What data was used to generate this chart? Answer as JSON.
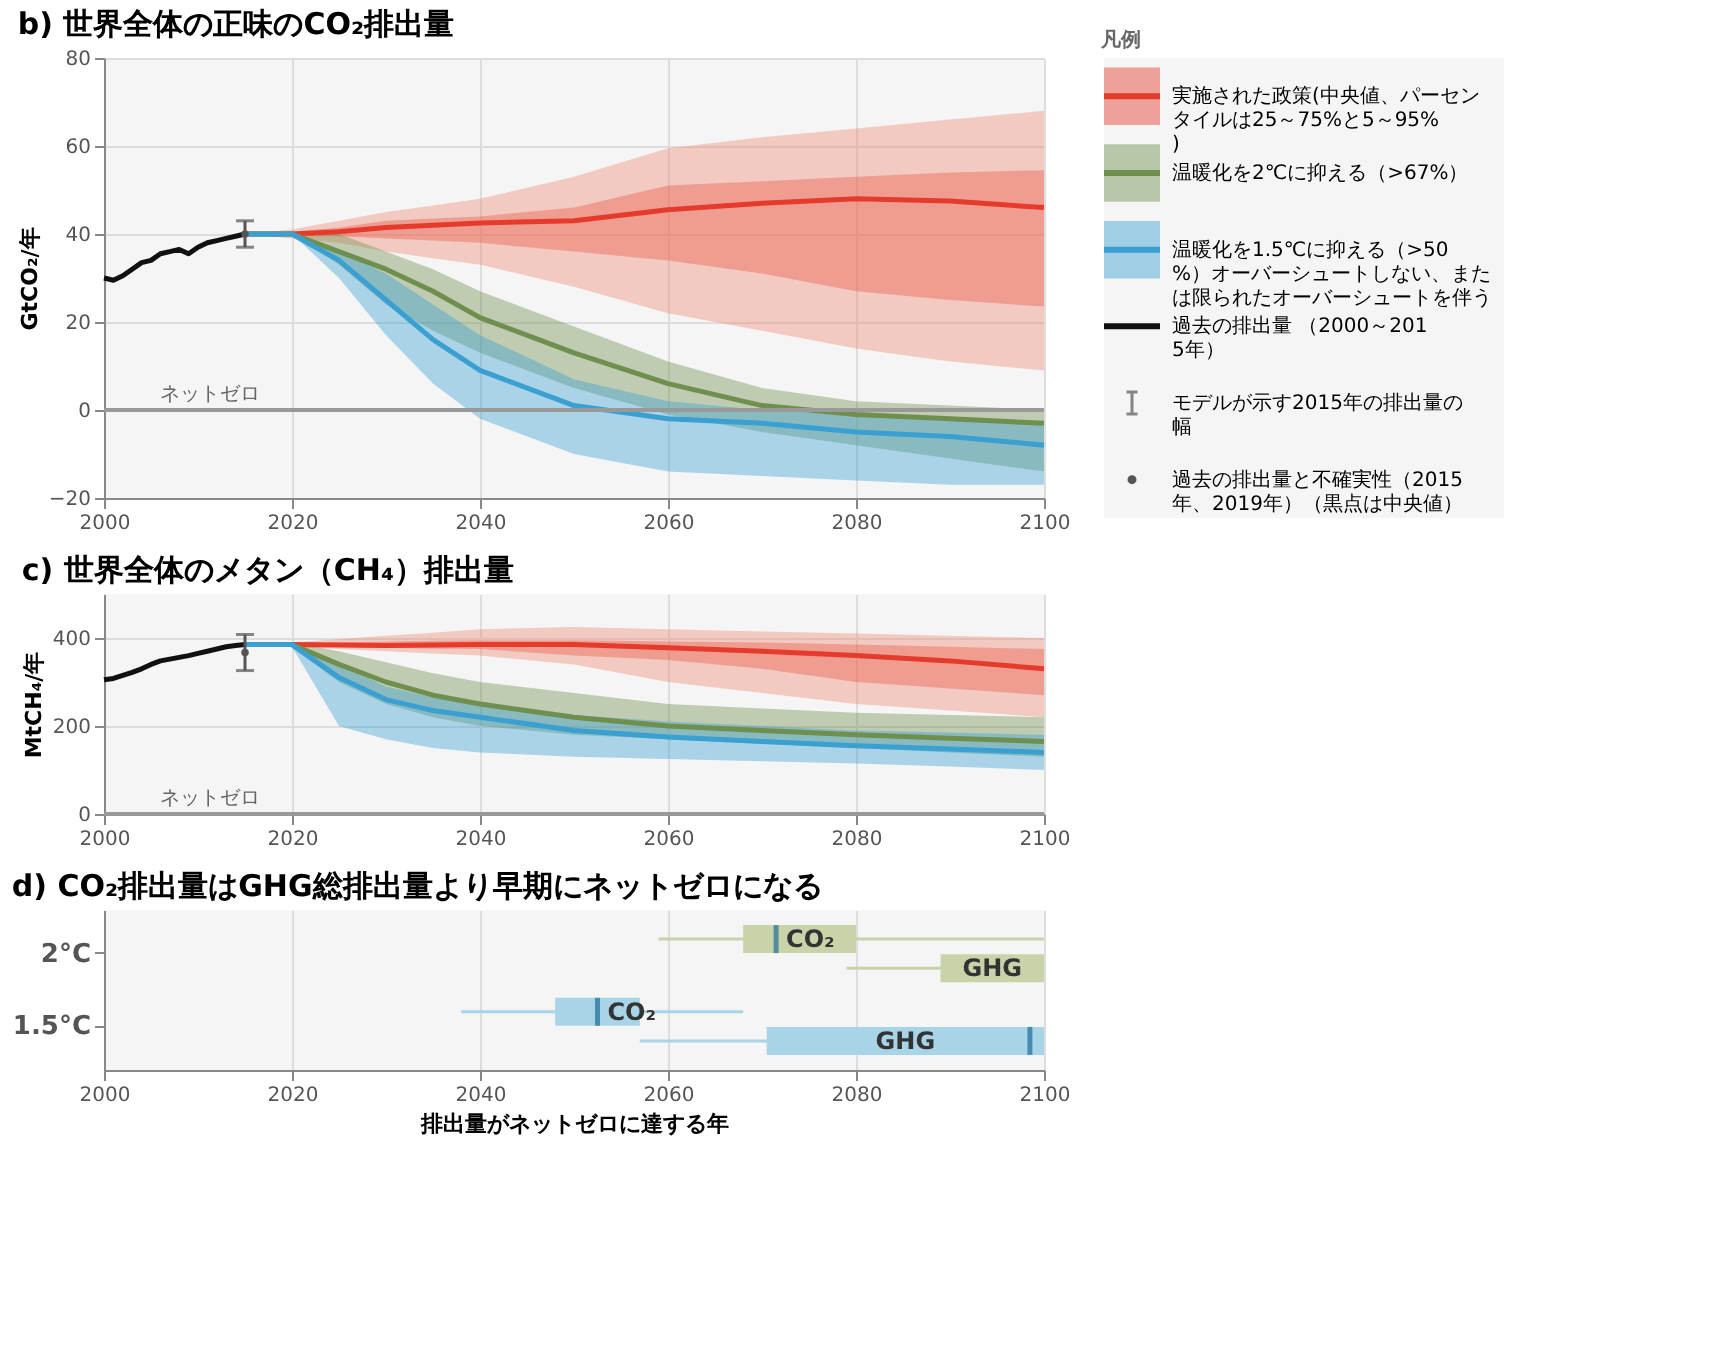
{
  "chart_data": [
    {
      "type": "line",
      "title": "b) 世界全体の正味のCO₂排出量",
      "ylabel": "GtCO₂/年",
      "legend_title": "凡例",
      "legend": "right",
      "grid": true,
      "x": [
        2015,
        2020,
        2025,
        2030,
        2035,
        2040,
        2050,
        2060,
        2070,
        2080,
        2090,
        2100
      ],
      "xlim": [
        2000,
        2100
      ],
      "xticks": [
        2000,
        2020,
        2040,
        2060,
        2080,
        2100
      ],
      "ylim": [
        -20,
        80
      ],
      "yticks": [
        -20,
        0,
        20,
        40,
        60,
        80
      ],
      "ref_lines": [
        {
          "axis": "y",
          "value": 0,
          "label": "ネットゼロ",
          "color": "#999999"
        }
      ],
      "annotations": [
        "過去の排出量と不確実性（2015年、2019年）（黒点は中央値）"
      ],
      "series": [
        {
          "name": "実施された政策(中央値、パーセンタイルは25～75%と5～95%)",
          "type": "line",
          "color": "#e53b2c",
          "values": [
            40,
            40,
            40.5,
            41.5,
            42,
            42.5,
            43,
            45.5,
            47,
            48,
            47.5,
            46
          ],
          "lower": [
            40,
            39.5,
            39.5,
            39,
            38.5,
            38,
            36,
            34,
            31,
            27,
            25,
            23.5
          ],
          "upper": [
            40,
            40.5,
            41.5,
            43,
            43.5,
            44,
            46,
            51,
            52,
            53,
            54,
            54.5
          ]
        },
        {
          "type": "line",
          "color": "#f08a73",
          "values": [
            null,
            null,
            null,
            null,
            null,
            null,
            null,
            null,
            null,
            null,
            null,
            null
          ],
          "lower": [
            40,
            39,
            38,
            36,
            34.5,
            33,
            28,
            22,
            18,
            14,
            11,
            9
          ],
          "upper": [
            40,
            41,
            43,
            45,
            46.5,
            48,
            53,
            59.5,
            62,
            64,
            66,
            68
          ]
        },
        {
          "name": "温暖化を2℃に抑える（>67%）",
          "type": "line",
          "color": "#6f8f4e",
          "values": [
            40,
            40,
            36,
            32,
            27,
            21,
            13,
            6,
            1,
            -1,
            -2,
            -3
          ],
          "lower": [
            40,
            40,
            33,
            24,
            18,
            13,
            5,
            -1,
            -5,
            -8,
            -11,
            -14
          ],
          "upper": [
            40,
            40,
            40,
            36,
            32,
            27,
            19,
            11,
            5,
            2,
            1,
            0
          ]
        },
        {
          "name": "温暖化を1.5℃に抑える（>50%）オーバーシュートしない、または限られたオーバーシュートを伴う",
          "type": "line",
          "color": "#3a9fd1",
          "values": [
            40,
            40,
            34,
            25,
            16,
            9,
            1,
            -2,
            -3,
            -5,
            -6,
            -8
          ],
          "lower": [
            40,
            40,
            30,
            17,
            6,
            -2,
            -10,
            -14,
            -15,
            -16,
            -17,
            -17
          ],
          "upper": [
            40,
            40,
            36,
            31,
            24,
            17,
            7,
            2,
            0,
            -1,
            -2,
            -3
          ]
        },
        {
          "name": "過去の排出量 （2000～2015年）",
          "type": "line",
          "color": "#111111",
          "x": [
            2000,
            2001,
            2002,
            2003,
            2004,
            2005,
            2006,
            2007,
            2008,
            2009,
            2010,
            2011,
            2012,
            2013,
            2014,
            2015
          ],
          "values": [
            30,
            29.5,
            30.5,
            32,
            33.5,
            34,
            35.5,
            36,
            36.5,
            35.5,
            37,
            38,
            38.5,
            39,
            39.5,
            40
          ]
        },
        {
          "name": "モデルが示す2015年の排出量の幅",
          "type": "scatter",
          "marker": "circle",
          "color": "#555555",
          "x": [
            2015
          ],
          "values": [
            40
          ],
          "errors": [
            3
          ]
        }
      ]
    },
    {
      "type": "line",
      "title": "c) 世界全体のメタン（CH₄）排出量",
      "ylabel": "MtCH₄/年",
      "grid": true,
      "legend": false,
      "x": [
        2015,
        2020,
        2025,
        2030,
        2035,
        2040,
        2050,
        2060,
        2070,
        2080,
        2090,
        2100
      ],
      "xlim": [
        2000,
        2100
      ],
      "xticks": [
        2000,
        2020,
        2040,
        2060,
        2080,
        2100
      ],
      "ylim": [
        0,
        500
      ],
      "yticks": [
        0,
        200,
        400
      ],
      "ref_lines": [
        {
          "axis": "y",
          "value": 0,
          "label": "ネットゼロ",
          "color": "#999999"
        }
      ],
      "series": [
        {
          "type": "line",
          "color": "#e53b2c",
          "values": [
            385,
            385,
            384,
            383,
            384,
            385,
            385,
            378,
            370,
            360,
            348,
            330
          ],
          "lower": [
            385,
            382,
            380,
            378,
            376,
            375,
            360,
            350,
            330,
            300,
            285,
            270
          ],
          "upper": [
            385,
            388,
            390,
            392,
            394,
            395,
            395,
            392,
            390,
            385,
            380,
            375
          ]
        },
        {
          "type": "line",
          "color": "#f08a73",
          "values": [
            null,
            null,
            null,
            null,
            null,
            null,
            null,
            null,
            null,
            null,
            null,
            null
          ],
          "lower": [
            385,
            380,
            375,
            370,
            365,
            360,
            340,
            300,
            275,
            250,
            235,
            220
          ],
          "upper": [
            385,
            390,
            398,
            405,
            412,
            420,
            425,
            420,
            415,
            410,
            405,
            400
          ]
        },
        {
          "type": "line",
          "color": "#6f8f4e",
          "values": [
            385,
            385,
            340,
            300,
            270,
            250,
            220,
            200,
            190,
            180,
            172,
            165
          ],
          "lower": [
            385,
            380,
            300,
            250,
            220,
            200,
            180,
            170,
            160,
            150,
            140,
            130
          ],
          "upper": [
            385,
            390,
            370,
            345,
            320,
            300,
            275,
            250,
            240,
            230,
            225,
            220
          ]
        },
        {
          "type": "line",
          "color": "#3a9fd1",
          "values": [
            385,
            385,
            310,
            260,
            235,
            220,
            190,
            175,
            165,
            155,
            148,
            140
          ],
          "lower": [
            385,
            380,
            200,
            170,
            150,
            140,
            130,
            125,
            120,
            115,
            108,
            100
          ],
          "upper": [
            385,
            390,
            340,
            290,
            265,
            250,
            225,
            210,
            200,
            190,
            185,
            180
          ]
        },
        {
          "type": "line",
          "color": "#111111",
          "x": [
            2000,
            2001,
            2002,
            2003,
            2004,
            2005,
            2006,
            2007,
            2008,
            2009,
            2010,
            2011,
            2012,
            2013,
            2014,
            2015
          ],
          "values": [
            305,
            308,
            315,
            322,
            330,
            340,
            348,
            352,
            356,
            360,
            365,
            370,
            375,
            380,
            383,
            385
          ]
        },
        {
          "type": "scatter",
          "marker": "circle",
          "color": "#555555",
          "x": [
            2015
          ],
          "values": [
            367
          ],
          "errors": [
            41
          ]
        }
      ]
    },
    {
      "type": "box",
      "orientation": "horizontal",
      "title": "d) CO₂排出量はGHG総排出量より早期にネットゼロになる",
      "xlabel": "排出量がネットゼロに達する年",
      "grid": "x",
      "legend": false,
      "categories": [
        "2°C",
        "1.5°C"
      ],
      "xlim": [
        2000,
        2100
      ],
      "xticks": [
        2000,
        2020,
        2040,
        2060,
        2080,
        2100
      ],
      "series": [
        {
          "name": "CO₂",
          "colors": [
            "#c9d3a9",
            "#a8d4e8"
          ],
          "boxes": [
            {
              "low": 2059,
              "q1": 2068,
              "median": 2071.5,
              "q3": 2080,
              "high": 2100
            },
            {
              "low": 2038,
              "q1": 2048,
              "median": 2052.5,
              "q3": 2057,
              "high": 2068
            }
          ]
        },
        {
          "name": "GHG",
          "colors": [
            "#c9d3a9",
            "#a8d4e8"
          ],
          "boxes": [
            {
              "low": 2079,
              "q1": 2089,
              "median": null,
              "q3": 2100,
              "high": 2100
            },
            {
              "low": 2057,
              "q1": 2070.5,
              "median": 2098.5,
              "q3": 2100,
              "high": 2100
            }
          ]
        }
      ]
    }
  ]
}
